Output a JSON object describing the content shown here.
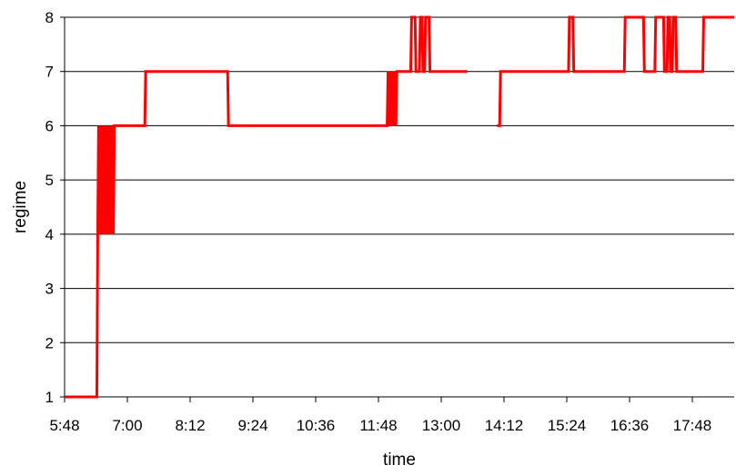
{
  "chart_data": {
    "type": "line",
    "title": "",
    "xlabel": "time",
    "ylabel": "regime",
    "xlim": [
      "5:48",
      "18:36"
    ],
    "ylim": [
      1,
      8
    ],
    "x_ticks": [
      "5:48",
      "7:00",
      "8:12",
      "9:24",
      "10:36",
      "11:48",
      "13:00",
      "14:12",
      "15:24",
      "16:36",
      "17:48"
    ],
    "y_ticks": [
      "1",
      "2",
      "3",
      "4",
      "5",
      "6",
      "7",
      "8"
    ],
    "grid": "horizontal",
    "legend": "none",
    "series": [
      {
        "color": "#ff0000",
        "segments": [
          {
            "x": [
              "5:48",
              "6:25",
              "6:26",
              "6:27",
              "6:28",
              "6:29",
              "6:30",
              "6:31",
              "6:32",
              "6:33",
              "6:34",
              "6:35",
              "6:36",
              "6:37",
              "6:38",
              "6:39",
              "6:40",
              "6:41",
              "6:42",
              "6:43",
              "6:44",
              "6:45",
              "6:46",
              "6:47",
              "7:20",
              "7:21",
              "8:55",
              "8:56",
              "11:58",
              "11:59",
              "12:00",
              "12:01",
              "12:02",
              "12:03",
              "12:04",
              "12:05",
              "12:06",
              "12:07",
              "12:08",
              "12:09",
              "12:10",
              "12:11",
              "12:25",
              "12:26",
              "12:30",
              "12:31",
              "12:35",
              "12:36",
              "12:38",
              "12:39",
              "12:41",
              "12:42",
              "12:46",
              "12:47",
              "13:30"
            ],
            "y": [
              1,
              1,
              4,
              6,
              4,
              6,
              4,
              6,
              4,
              6,
              4,
              6,
              4,
              6,
              4,
              6,
              4,
              6,
              4,
              6,
              4,
              6,
              6,
              6,
              6,
              7,
              7,
              6,
              6,
              7,
              6,
              7,
              6,
              7,
              6,
              7,
              6,
              7,
              6,
              7,
              7,
              7,
              7,
              8,
              8,
              7,
              7,
              8,
              8,
              7,
              7,
              8,
              8,
              7,
              7
            ]
          },
          {
            "x": [
              "14:04",
              "14:07",
              "14:08",
              "15:26",
              "15:27",
              "15:31",
              "15:32",
              "16:30",
              "16:31",
              "16:52",
              "16:53",
              "17:05",
              "17:06",
              "17:15",
              "17:16",
              "17:19",
              "17:20",
              "17:22",
              "17:23",
              "17:25",
              "17:26",
              "17:29",
              "17:30",
              "17:33",
              "17:34",
              "18:00",
              "18:01",
              "18:36"
            ],
            "y": [
              6,
              6,
              7,
              7,
              8,
              8,
              7,
              7,
              8,
              8,
              7,
              7,
              8,
              8,
              7,
              7,
              8,
              8,
              7,
              7,
              8,
              8,
              7,
              7,
              7,
              7,
              8,
              8
            ]
          }
        ]
      }
    ]
  }
}
